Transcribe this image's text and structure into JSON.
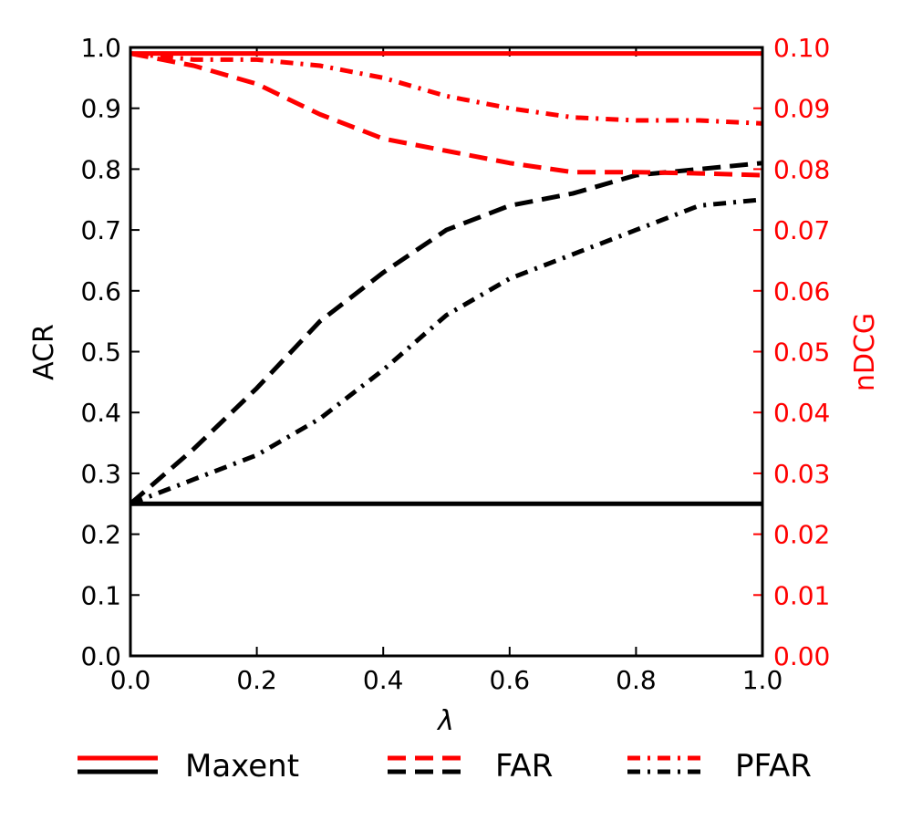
{
  "chart_data": {
    "type": "line",
    "xlabel": "λ",
    "ylabel_left": "ACR",
    "ylabel_right": "nDCG",
    "xlim": [
      0.0,
      1.0
    ],
    "ylim_left": [
      0.0,
      1.0
    ],
    "ylim_right": [
      0.0,
      0.1
    ],
    "x_ticks": [
      "0.0",
      "0.2",
      "0.4",
      "0.6",
      "0.8",
      "1.0"
    ],
    "y_left_ticks": [
      "0.0",
      "0.1",
      "0.2",
      "0.3",
      "0.4",
      "0.5",
      "0.6",
      "0.7",
      "0.8",
      "0.9",
      "1.0"
    ],
    "y_right_ticks": [
      "0.00",
      "0.01",
      "0.02",
      "0.03",
      "0.04",
      "0.05",
      "0.06",
      "0.07",
      "0.08",
      "0.09",
      "0.10"
    ],
    "x": [
      0.0,
      0.1,
      0.2,
      0.3,
      0.4,
      0.5,
      0.6,
      0.7,
      0.8,
      0.9,
      1.0
    ],
    "colors": {
      "acr": "#000000",
      "ndcg": "#ff0000"
    },
    "series": [
      {
        "name": "Maxent",
        "metric": "ACR",
        "axis": "left",
        "style": "solid",
        "values": [
          0.25,
          0.25,
          0.25,
          0.25,
          0.25,
          0.25,
          0.25,
          0.25,
          0.25,
          0.25,
          0.25
        ]
      },
      {
        "name": "FAR",
        "metric": "ACR",
        "axis": "left",
        "style": "dashed",
        "values": [
          0.25,
          0.34,
          0.44,
          0.55,
          0.63,
          0.7,
          0.74,
          0.76,
          0.79,
          0.8,
          0.81
        ]
      },
      {
        "name": "PFAR",
        "metric": "ACR",
        "axis": "left",
        "style": "dashdot",
        "values": [
          0.25,
          0.29,
          0.33,
          0.39,
          0.47,
          0.56,
          0.62,
          0.66,
          0.7,
          0.74,
          0.75
        ]
      },
      {
        "name": "Maxent",
        "metric": "nDCG",
        "axis": "right",
        "style": "solid",
        "values": [
          0.099,
          0.099,
          0.099,
          0.099,
          0.099,
          0.099,
          0.099,
          0.099,
          0.099,
          0.099,
          0.099
        ]
      },
      {
        "name": "FAR",
        "metric": "nDCG",
        "axis": "right",
        "style": "dashed",
        "values": [
          0.099,
          0.097,
          0.094,
          0.089,
          0.085,
          0.083,
          0.081,
          0.0795,
          0.0795,
          0.0793,
          0.079
        ]
      },
      {
        "name": "PFAR",
        "metric": "nDCG",
        "axis": "right",
        "style": "dashdot",
        "values": [
          0.099,
          0.098,
          0.098,
          0.097,
          0.095,
          0.092,
          0.09,
          0.0885,
          0.088,
          0.088,
          0.0875
        ]
      }
    ],
    "legend": {
      "placement": "bottom",
      "entries": [
        "Maxent",
        "FAR",
        "PFAR"
      ]
    }
  }
}
